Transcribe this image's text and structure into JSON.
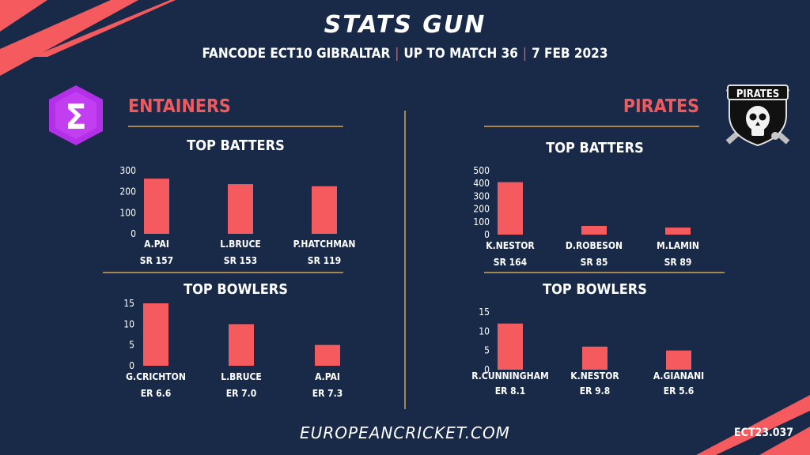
{
  "header": {
    "title": "STATS GUN",
    "subtitle_parts": [
      "FANCODE ECT10 GIBRALTAR",
      "UP TO MATCH  36",
      "7 FEB 2023"
    ]
  },
  "teams": {
    "left": {
      "name": "ENTAINERS",
      "logo_glyph": "Σ",
      "logo_color": "#b42fe8"
    },
    "right": {
      "name": "PIRATES",
      "logo_text": "PIRATES"
    }
  },
  "footer": {
    "site": "EUROPEANCRICKET.COM",
    "code": "ECT23.037"
  },
  "colors": {
    "background": "#182a48",
    "bar": "#f45a5e",
    "accent_line": "#a8864f",
    "team_name": "#f05a5e"
  },
  "chart_data": [
    {
      "type": "bar",
      "team": "ENTAINERS",
      "title": "TOP BATTERS",
      "categories": [
        "A.PAI",
        "L.BRUCE",
        "P.HATCHMAN"
      ],
      "values": [
        262,
        236,
        226
      ],
      "sublabels": [
        "SR 157",
        "SR 153",
        "SR 119"
      ],
      "yticks": [
        0,
        100,
        200,
        300
      ],
      "ylim": [
        0,
        300
      ]
    },
    {
      "type": "bar",
      "team": "ENTAINERS",
      "title": "TOP BOWLERS",
      "categories": [
        "G.CRICHTON",
        "L.BRUCE",
        "A.PAI"
      ],
      "values": [
        15,
        10,
        5
      ],
      "sublabels": [
        "ER 6.6",
        "ER 7.0",
        "ER 7.3"
      ],
      "yticks": [
        0,
        5,
        10,
        15
      ],
      "ylim": [
        0,
        15
      ]
    },
    {
      "type": "bar",
      "team": "PIRATES",
      "title": "TOP BATTERS",
      "categories": [
        "K.NESTOR",
        "D.ROBESON",
        "M.LAMIN"
      ],
      "values": [
        410,
        68,
        55
      ],
      "sublabels": [
        "SR 164",
        "SR 85",
        "SR 89"
      ],
      "yticks": [
        0,
        100,
        200,
        300,
        400,
        500
      ],
      "ylim": [
        0,
        500
      ]
    },
    {
      "type": "bar",
      "team": "PIRATES",
      "title": "TOP BOWLERS",
      "categories": [
        "R.CUNNINGHAM",
        "K.NESTOR",
        "A.GIANANI"
      ],
      "values": [
        12,
        6,
        5
      ],
      "sublabels": [
        "ER 8.1",
        "ER 9.8",
        "ER 5.6"
      ],
      "yticks": [
        0,
        5,
        10,
        15
      ],
      "ylim": [
        0,
        15
      ]
    }
  ]
}
